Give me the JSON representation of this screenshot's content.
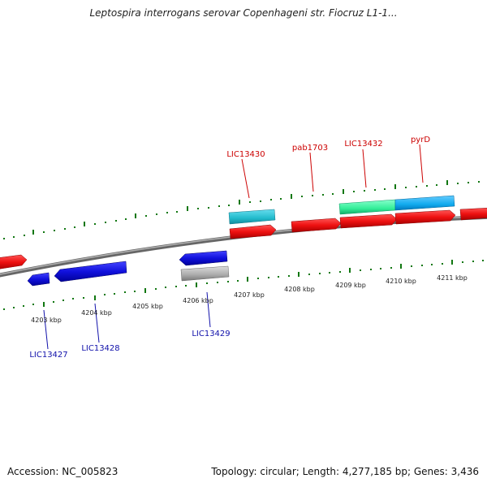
{
  "title": "Leptospira interrogans serovar Copenhageni str. Fiocruz L1-1...",
  "footer": {
    "accession": "Accession: NC_005823",
    "summary": "Topology: circular; Length: 4,277,185 bp; Genes: 3,436"
  },
  "scale_labels": [
    "4203 kbp",
    "4204 kbp",
    "4205 kbp",
    "4206 kbp",
    "4207 kbp",
    "4208 kbp",
    "4209 kbp",
    "4210 kbp",
    "4211 kbp"
  ],
  "gene_labels": {
    "outer": [
      {
        "name": "LIC13430",
        "color": "#cc0000"
      },
      {
        "name": "pab1703",
        "color": "#cc0000"
      },
      {
        "name": "LIC13432",
        "color": "#cc0000"
      },
      {
        "name": "pyrD",
        "color": "#cc0000"
      }
    ],
    "inner": [
      {
        "name": "LIC13427",
        "color": "#1010aa"
      },
      {
        "name": "LIC13428",
        "color": "#1010aa"
      },
      {
        "name": "LIC13429",
        "color": "#1010aa"
      }
    ]
  },
  "colors": {
    "forward_gene": "#ee1111",
    "reverse_gene": "#1111dd",
    "forward_cds_feature": "#22bbcc",
    "rna_feature": "#33ee99",
    "sky_feature": "#11aaee",
    "grey_feature": "#aaaaaa",
    "backbone": "#888888",
    "tick": "#117711"
  }
}
